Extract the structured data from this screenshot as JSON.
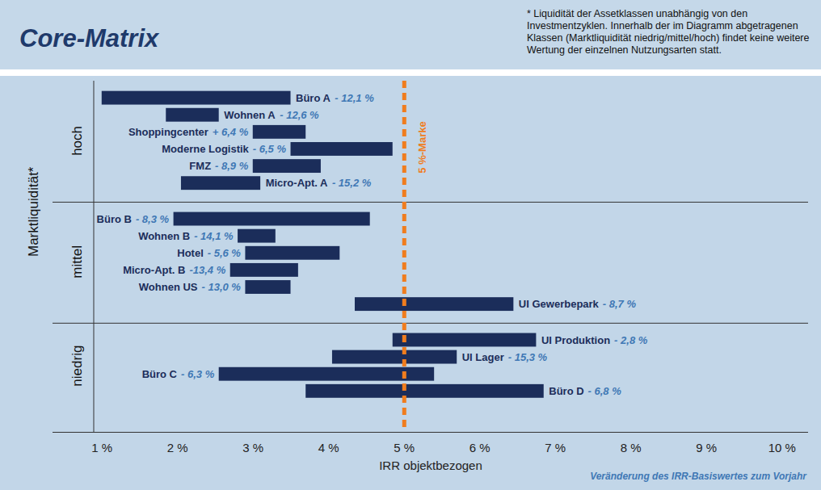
{
  "chart_data": {
    "type": "bar",
    "orientation": "horizontal",
    "title": "Core-Matrix",
    "note": "* Liquidität der Assetklassen unabhängig von den Investmentzyklen. Innerhalb der im Diagramm abgetragenen Klassen (Marktliquidität niedrig/mittel/hoch) findet keine weitere Wertung der einzelnen Nutzungsarten statt.",
    "x_label": "IRR objektbezogen",
    "y_label": "Marktliquidität*",
    "footnote": "Veränderung des IRR-Basiswertes zum Vorjahr",
    "categories": [
      "Büro A",
      "Wohnen A",
      "Shoppingcenter",
      "Moderne Logistik",
      "FMZ",
      "Micro-Apt. A",
      "Büro B",
      "Wohnen B",
      "Hotel",
      "Micro-Apt. B",
      "Wohnen US",
      "UI Gewerbepark",
      "UI Produktion",
      "UI Lager",
      "Büro C",
      "Büro D"
    ],
    "groups": [
      "hoch",
      "hoch",
      "hoch",
      "hoch",
      "hoch",
      "hoch",
      "mittel",
      "mittel",
      "mittel",
      "mittel",
      "mittel",
      "mittel",
      "niedrig",
      "niedrig",
      "niedrig",
      "niedrig"
    ],
    "values": [
      [
        1.0,
        3.5
      ],
      [
        1.85,
        2.55
      ],
      [
        3.0,
        3.7
      ],
      [
        3.5,
        4.85
      ],
      [
        3.0,
        3.9
      ],
      [
        2.05,
        3.1
      ],
      [
        1.95,
        4.55
      ],
      [
        2.8,
        3.3
      ],
      [
        2.9,
        4.15
      ],
      [
        2.7,
        3.6
      ],
      [
        2.9,
        3.5
      ],
      [
        4.35,
        6.45
      ],
      [
        4.85,
        6.75
      ],
      [
        4.05,
        5.7
      ],
      [
        2.55,
        5.4
      ],
      [
        3.7,
        6.85
      ]
    ],
    "change_labels": [
      "- 12,1 %",
      "- 12,6 %",
      "+ 6,4 %",
      "- 6,5 %",
      "- 8,9 %",
      "- 15,2 %",
      "- 8,3 %",
      "- 14,1 %",
      "- 5,6 %",
      "-13,4 %",
      "- 13,0 %",
      "- 8,7 %",
      "- 2,8 %",
      "- 15,3 %",
      "- 6,3 %",
      "- 6,8 %"
    ],
    "color": "#1b2d5a",
    "annotations": [
      {
        "x": 5,
        "text": "5 %-Marke",
        "color": "#f07d1e"
      }
    ],
    "xlim": [
      0.35,
      10.35
    ],
    "xticks": [
      {
        "value": 1,
        "label": "1 %"
      },
      {
        "value": 2,
        "label": "2 %"
      },
      {
        "value": 3,
        "label": "3 %"
      },
      {
        "value": 4,
        "label": "4 %"
      },
      {
        "value": 5,
        "label": "5 %"
      },
      {
        "value": 6,
        "label": "6 %"
      },
      {
        "value": 7,
        "label": "7 %"
      },
      {
        "value": 8,
        "label": "8 %"
      },
      {
        "value": 9,
        "label": "9 %"
      },
      {
        "value": 10,
        "label": "10 %"
      }
    ],
    "grid": false
  }
}
